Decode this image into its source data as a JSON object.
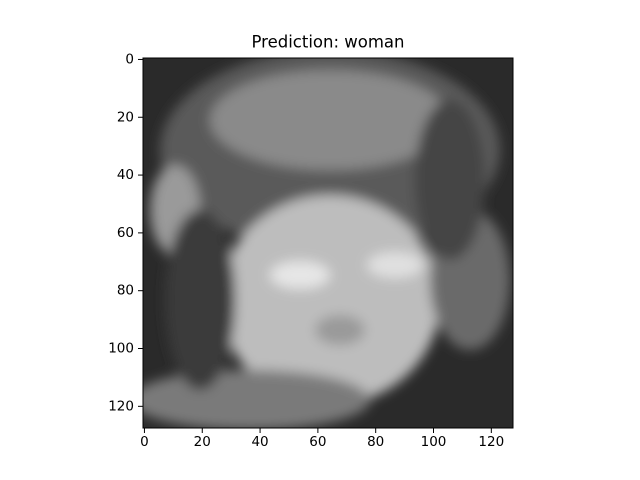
{
  "chart_data": {
    "type": "image",
    "title": "Prediction: woman",
    "xlim": [
      -0.5,
      127.5
    ],
    "ylim": [
      127.5,
      -0.5
    ],
    "xticks": [
      0,
      20,
      40,
      60,
      80,
      100,
      120
    ],
    "yticks": [
      0,
      20,
      40,
      60,
      80,
      100,
      120
    ]
  }
}
